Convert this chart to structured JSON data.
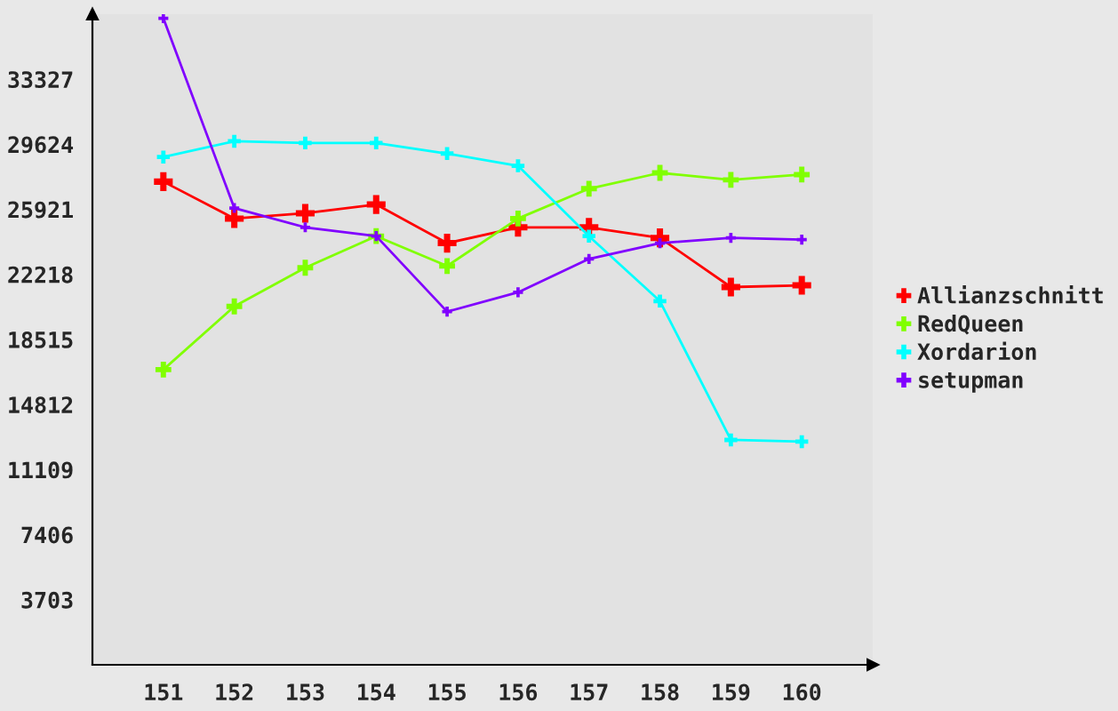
{
  "chart_data": {
    "type": "line",
    "x": [
      151,
      152,
      153,
      154,
      155,
      156,
      157,
      158,
      159,
      160
    ],
    "series": [
      {
        "name": "Allianzschnitt",
        "color": "#ff0000",
        "values": [
          27500,
          25400,
          25700,
          26200,
          24000,
          24900,
          24900,
          24300,
          21500,
          21600
        ]
      },
      {
        "name": "RedQueen",
        "color": "#80ff00",
        "values": [
          16800,
          20400,
          22600,
          24400,
          22700,
          25400,
          27100,
          28000,
          27600,
          27900
        ]
      },
      {
        "name": "Xordarion",
        "color": "#00ffff",
        "values": [
          28900,
          29800,
          29700,
          29700,
          29100,
          28400,
          24400,
          20700,
          12800,
          12700
        ]
      },
      {
        "name": "setupman",
        "color": "#8000ff",
        "values": [
          36800,
          26000,
          24900,
          24400,
          20100,
          21200,
          23100,
          24000,
          24300,
          24200
        ]
      }
    ],
    "xlim": [
      150,
      161
    ],
    "xticks": [
      151,
      152,
      153,
      154,
      155,
      156,
      157,
      158,
      159,
      160
    ],
    "ylim": [
      0,
      37030
    ],
    "yticks": [
      3703,
      7406,
      11109,
      14812,
      18515,
      22218,
      25921,
      29624,
      33327
    ],
    "legend": "right",
    "marker": "cross",
    "line_style": "solid"
  }
}
